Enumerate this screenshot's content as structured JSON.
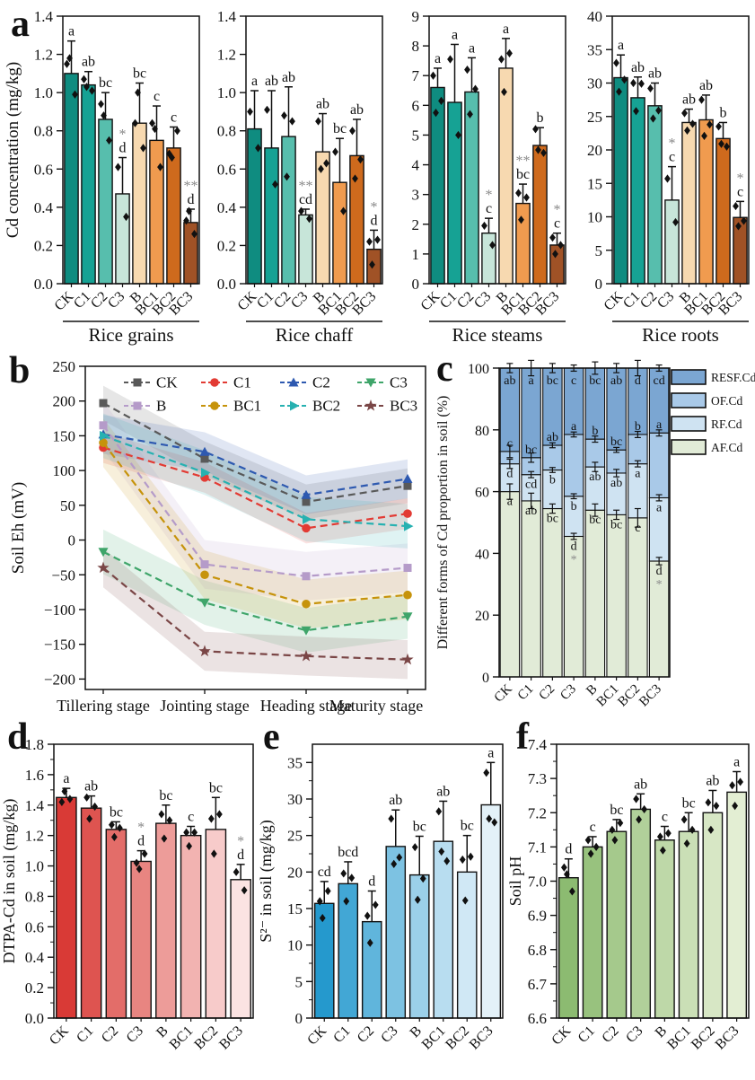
{
  "figure": {
    "panels": [
      {
        "id": "a",
        "letter": "a"
      },
      {
        "id": "b",
        "letter": "b"
      },
      {
        "id": "c",
        "letter": "c"
      },
      {
        "id": "d",
        "letter": "d"
      },
      {
        "id": "e",
        "letter": "e"
      },
      {
        "id": "f",
        "letter": "f"
      }
    ]
  },
  "chart_data": [
    {
      "id": "grains",
      "type": "bar",
      "group_label": "Rice grains",
      "ylabel": "Cd concentration (mg/kg)",
      "ylim": [
        0,
        1.4
      ],
      "ytick_step": 0.2,
      "ytick_decimals": 1,
      "categories": [
        "CK",
        "C1",
        "C2",
        "C3",
        "B",
        "BC1",
        "BC2",
        "BC3"
      ],
      "values": [
        1.1,
        1.04,
        0.86,
        0.47,
        0.84,
        0.75,
        0.71,
        0.32
      ],
      "errors": [
        0.17,
        0.07,
        0.14,
        0.19,
        0.21,
        0.18,
        0.11,
        0.07
      ],
      "sig": [
        "a",
        "ab",
        "bc",
        "d",
        "bc",
        "c",
        "c",
        "d"
      ],
      "stars": [
        "",
        "",
        "",
        "*",
        "",
        "",
        "",
        "**"
      ],
      "points": [
        [
          1.15,
          0.99,
          1.18
        ],
        [
          1.07,
          1.01,
          1.03
        ],
        [
          0.94,
          0.75,
          0.88
        ],
        [
          0.61,
          0.35
        ],
        [
          0.84,
          0.71,
          1.0
        ],
        [
          0.84,
          0.61,
          0.81
        ],
        [
          0.68,
          0.8,
          0.66
        ],
        [
          0.33,
          0.26,
          0.38
        ]
      ],
      "colors": [
        "#0f8c80",
        "#16a294",
        "#57bead",
        "#c7e5d9",
        "#f7d9b0",
        "#f09b4f",
        "#ce6a1d",
        "#a05226"
      ]
    },
    {
      "id": "chaff",
      "type": "bar",
      "group_label": "Rice chaff",
      "ylim": [
        0,
        1.4
      ],
      "ytick_step": 0.2,
      "ytick_decimals": 1,
      "categories": [
        "CK",
        "C1",
        "C2",
        "C3",
        "B",
        "BC1",
        "BC2",
        "BC3"
      ],
      "values": [
        0.81,
        0.71,
        0.77,
        0.36,
        0.69,
        0.53,
        0.67,
        0.18
      ],
      "errors": [
        0.2,
        0.3,
        0.26,
        0.03,
        0.2,
        0.23,
        0.19,
        0.1
      ],
      "sig": [
        "a",
        "ab",
        "ab",
        "cd",
        "ab",
        "bc",
        "ab",
        "d"
      ],
      "stars": [
        "",
        "",
        "",
        "**",
        "",
        "",
        "",
        "*"
      ],
      "points": [
        [
          0.9,
          0.71
        ],
        [
          0.91,
          0.52
        ],
        [
          0.88,
          0.85,
          0.56
        ],
        [
          0.38,
          0.34
        ],
        [
          0.85,
          0.63,
          0.6
        ],
        [
          0.69,
          0.38
        ],
        [
          0.8,
          0.65,
          0.55
        ],
        [
          0.22,
          0.23,
          0.1
        ]
      ],
      "colors": [
        "#0f8c80",
        "#16a294",
        "#57bead",
        "#c7e5d9",
        "#f7d9b0",
        "#f09b4f",
        "#ce6a1d",
        "#a05226"
      ]
    },
    {
      "id": "steams",
      "type": "bar",
      "group_label": "Rice steams",
      "ylim": [
        0,
        9
      ],
      "ytick_step": 1,
      "ytick_decimals": 0,
      "categories": [
        "CK",
        "C1",
        "C2",
        "C3",
        "B",
        "BC1",
        "BC2",
        "BC3"
      ],
      "values": [
        6.6,
        6.1,
        6.45,
        1.7,
        7.25,
        2.7,
        4.65,
        1.3
      ],
      "errors": [
        0.65,
        1.95,
        1.15,
        0.5,
        1.0,
        0.65,
        0.6,
        0.4
      ],
      "sig": [
        "a",
        "a",
        "a",
        "c",
        "a",
        "bc",
        "b",
        "c"
      ],
      "stars": [
        "",
        "",
        "",
        "*",
        "",
        "**",
        "",
        "*"
      ],
      "points": [
        [
          7.0,
          6.15,
          5.75
        ],
        [
          7.55,
          5.0
        ],
        [
          7.2,
          6.55,
          5.7
        ],
        [
          1.95,
          1.3
        ],
        [
          7.55,
          7.75,
          6.45
        ],
        [
          3.05,
          2.9,
          2.15
        ],
        [
          5.2,
          4.4,
          4.5
        ],
        [
          1.55,
          1.3,
          1.0
        ]
      ],
      "colors": [
        "#0f8c80",
        "#16a294",
        "#57bead",
        "#c7e5d9",
        "#f7d9b0",
        "#f09b4f",
        "#ce6a1d",
        "#a05226"
      ]
    },
    {
      "id": "roots",
      "type": "bar",
      "group_label": "Rice roots",
      "ylim": [
        0,
        40
      ],
      "ytick_step": 5,
      "ytick_decimals": 0,
      "categories": [
        "CK",
        "C1",
        "C2",
        "C3",
        "B",
        "BC1",
        "BC2",
        "BC3"
      ],
      "values": [
        30.8,
        27.8,
        26.6,
        12.5,
        24.1,
        24.5,
        21.7,
        9.9
      ],
      "errors": [
        3.4,
        3.1,
        3.4,
        5.0,
        2.0,
        3.7,
        2.4,
        2.4
      ],
      "sig": [
        "a",
        "ab",
        "ab",
        "c",
        "ab",
        "ab",
        "b",
        "c"
      ],
      "stars": [
        "",
        "",
        "",
        "*",
        "",
        "",
        "",
        "*"
      ],
      "points": [
        [
          33,
          30.5,
          28.7
        ],
        [
          30,
          29.9,
          25.8
        ],
        [
          29.2,
          25.9,
          24.7
        ],
        [
          15.7,
          9.2
        ],
        [
          25.5,
          23.9,
          22.9
        ],
        [
          27.5,
          23.8,
          22.1
        ],
        [
          23.5,
          20.5,
          20.9
        ],
        [
          11.6,
          9.4,
          8.6
        ]
      ],
      "colors": [
        "#0f8c80",
        "#16a294",
        "#57bead",
        "#c7e5d9",
        "#f7d9b0",
        "#f09b4f",
        "#ce6a1d",
        "#a05226"
      ]
    },
    {
      "id": "eh",
      "type": "line",
      "ylabel": "Soil Eh (mV)",
      "ylim": [
        -215,
        250
      ],
      "ytick_step": 50,
      "ytick_decimals": 0,
      "x_categories": [
        "Tillering stage",
        "Jointing stage",
        "Heading stage",
        "Maturity stage"
      ],
      "series": [
        {
          "name": "CK",
          "color": "#595959",
          "marker": "square",
          "values": [
            197,
            117,
            55,
            78
          ],
          "band": 25
        },
        {
          "name": "C1",
          "color": "#e23b34",
          "marker": "circle",
          "values": [
            133,
            90,
            17,
            38
          ],
          "band": 22
        },
        {
          "name": "C2",
          "color": "#2e59b0",
          "marker": "triangle-up",
          "values": [
            152,
            127,
            65,
            88
          ],
          "band": 28
        },
        {
          "name": "C3",
          "color": "#3fa56a",
          "marker": "triangle-down",
          "values": [
            -17,
            -90,
            -130,
            -110
          ],
          "band": 32
        },
        {
          "name": "B",
          "color": "#b59bc9",
          "marker": "square",
          "values": [
            165,
            -35,
            -52,
            -40
          ],
          "band": 35
        },
        {
          "name": "BC1",
          "color": "#c6930b",
          "marker": "circle",
          "values": [
            140,
            -50,
            -92,
            -79
          ],
          "band": 35
        },
        {
          "name": "BC2",
          "color": "#27b1b1",
          "marker": "triangle-right",
          "values": [
            150,
            97,
            30,
            20
          ],
          "band": 32
        },
        {
          "name": "BC3",
          "color": "#7a4646",
          "marker": "star",
          "values": [
            -40,
            -160,
            -167,
            -172
          ],
          "band": 28
        }
      ],
      "legend_rows": [
        [
          "CK",
          "C1",
          "C2",
          "C3"
        ],
        [
          "B",
          "BC1",
          "BC2",
          "BC3"
        ]
      ]
    },
    {
      "id": "forms",
      "type": "stacked_bar",
      "ylabel": "Different forms of Cd proportion in soil (%)",
      "ylim": [
        0,
        100
      ],
      "ytick_step": 20,
      "ytick_decimals": 0,
      "categories": [
        "CK",
        "C1",
        "C2",
        "C3",
        "B",
        "BC1",
        "BC2",
        "BC3"
      ],
      "segments_order": [
        "AF.Cd",
        "RF.Cd",
        "OF.Cd",
        "RESF.Cd"
      ],
      "segments": {
        "AF.Cd": [
          60,
          57,
          54.5,
          45.5,
          54,
          52.5,
          51.5,
          37.5
        ],
        "RF.Cd": [
          9,
          8.5,
          12.5,
          13,
          14,
          13.5,
          17.5,
          20.5
        ],
        "OF.Cd": [
          4,
          5.5,
          8,
          20,
          9,
          7.5,
          9.5,
          21
        ],
        "RESF.Cd": [
          27,
          29,
          25,
          21.5,
          23,
          26.5,
          21.5,
          21
        ]
      },
      "segment_colors": {
        "AF.Cd": "#e1ebd7",
        "RF.Cd": "#cfe3f2",
        "OF.Cd": "#a9c9e8",
        "RESF.Cd": "#7ba6d2"
      },
      "boundary_errors": {
        "AF": [
          2.5,
          2.5,
          1.5,
          1,
          2,
          1.5,
          3,
          1.2
        ],
        "RF": [
          1.5,
          1,
          0.8,
          0.8,
          1.5,
          1.2,
          1,
          1
        ],
        "OF": [
          2,
          1.5,
          0.8,
          0.8,
          1,
          0.8,
          1,
          1
        ],
        "top": [
          1.5,
          2.5,
          1.5,
          1,
          2,
          1.5,
          2.5,
          1
        ]
      },
      "sig": {
        "RESF": [
          "ab",
          "a",
          "bc",
          "c",
          "bc",
          "ab",
          "d",
          "cd"
        ],
        "OF": [
          "c",
          "bc",
          "ab",
          "a",
          "b",
          "bc",
          "b",
          "a"
        ],
        "RF": [
          "d",
          "cd",
          "b",
          "b",
          "ab",
          "ab",
          "a",
          "a"
        ],
        "AF": [
          "a",
          "ab",
          "bc",
          "d",
          "bc",
          "bc",
          "c",
          "d"
        ]
      },
      "af_stars": [
        "",
        "",
        "",
        "*",
        "",
        "",
        "",
        "*"
      ],
      "legend": [
        "RESF.Cd",
        "OF.Cd",
        "RF.Cd",
        "AF.Cd"
      ]
    },
    {
      "id": "dtpa",
      "type": "bar",
      "ylabel": "DTPA-Cd in soil (mg/kg)",
      "ylim": [
        0,
        1.8
      ],
      "ytick_step": 0.2,
      "ytick_minor": 0.1,
      "ytick_decimals": 1,
      "categories": [
        "CK",
        "C1",
        "C2",
        "C3",
        "B",
        "BC1",
        "BC2",
        "BC3"
      ],
      "values": [
        1.45,
        1.38,
        1.24,
        1.03,
        1.28,
        1.2,
        1.24,
        0.91
      ],
      "errors": [
        0.06,
        0.08,
        0.05,
        0.07,
        0.12,
        0.06,
        0.21,
        0.1
      ],
      "sig": [
        "a",
        "ab",
        "bc",
        "d",
        "bc",
        "c",
        "bc",
        "d"
      ],
      "stars": [
        "",
        "",
        "",
        "*",
        "",
        "",
        "",
        "*"
      ],
      "points": [
        [
          1.42,
          1.44,
          1.49
        ],
        [
          1.45,
          1.39,
          1.31
        ],
        [
          1.27,
          1.25,
          1.19
        ],
        [
          1.02,
          1.08,
          0.98
        ],
        [
          1.34,
          1.3,
          1.18
        ],
        [
          1.22,
          1.22,
          1.13
        ],
        [
          1.31,
          1.34,
          1.08
        ],
        [
          0.96,
          0.84
        ]
      ],
      "colors": [
        "#d93a36",
        "#de5450",
        "#e36d69",
        "#e88581",
        "#ed9c99",
        "#f2b3b1",
        "#f7cbca",
        "#fbe3e2"
      ]
    },
    {
      "id": "sulfide",
      "type": "bar",
      "ylabel": "S²⁻ in soil (mg/kg)",
      "ylim": [
        0,
        37.5
      ],
      "ytick_step": 5,
      "ytick_minor": 2.5,
      "ytick_max": 35,
      "ytick_decimals": 0,
      "categories": [
        "CK",
        "C1",
        "C2",
        "C3",
        "B",
        "BC1",
        "BC2",
        "BC3"
      ],
      "values": [
        15.7,
        18.4,
        13.2,
        23.5,
        19.6,
        24.2,
        20.0,
        29.2
      ],
      "errors": [
        3.0,
        3.0,
        4.2,
        5.0,
        5.3,
        5.5,
        5.0,
        5.8
      ],
      "sig": [
        "cd",
        "bcd",
        "d",
        "ab",
        "bc",
        "ab",
        "bc",
        "a"
      ],
      "stars": [
        "",
        "",
        "",
        "",
        "",
        "",
        "",
        ""
      ],
      "points": [
        [
          16.0,
          17.4,
          13.7
        ],
        [
          19.8,
          19.2,
          16.0
        ],
        [
          14.0,
          15.5,
          10.3
        ],
        [
          27.3,
          22.0,
          21.1
        ],
        [
          23.4,
          19.1,
          16.2
        ],
        [
          28.3,
          21.5,
          22.8
        ],
        [
          21.7,
          22.1,
          16.1
        ],
        [
          33.6,
          26.8,
          27.3
        ]
      ],
      "colors": [
        "#2599cd",
        "#42a7d5",
        "#60b5dc",
        "#7dc2e2",
        "#9bd0e9",
        "#b8ddf0",
        "#d0e8f5",
        "#e3f1f8"
      ]
    },
    {
      "id": "ph",
      "type": "bar",
      "ylabel": "Soil pH",
      "ylim": [
        6.6,
        7.4
      ],
      "ytick_step": 0.1,
      "ytick_minor": 0.05,
      "ytick_decimals": 1,
      "categories": [
        "CK",
        "C1",
        "C2",
        "C3",
        "B",
        "BC1",
        "BC2",
        "BC3"
      ],
      "values": [
        7.01,
        7.1,
        7.145,
        7.21,
        7.12,
        7.145,
        7.2,
        7.26
      ],
      "errors": [
        0.055,
        0.03,
        0.035,
        0.045,
        0.04,
        0.055,
        0.065,
        0.06
      ],
      "sig": [
        "d",
        "c",
        "bc",
        "ab",
        "c",
        "bc",
        "ab",
        "a"
      ],
      "stars": [
        "",
        "",
        "",
        "",
        "",
        "",
        "",
        ""
      ],
      "points": [
        [
          7.04,
          6.97,
          7.02
        ],
        [
          7.12,
          7.1,
          7.08
        ],
        [
          7.15,
          7.17,
          7.12
        ],
        [
          7.24,
          7.21,
          7.18
        ],
        [
          7.13,
          7.14,
          7.09
        ],
        [
          7.18,
          7.15,
          7.11
        ],
        [
          7.23,
          7.22,
          7.15
        ],
        [
          7.28,
          7.29,
          7.22
        ]
      ],
      "colors": [
        "#8cbb71",
        "#98c27e",
        "#a5c98c",
        "#b1d09a",
        "#bed8a8",
        "#cadfb6",
        "#d7e7c5",
        "#e3eed3"
      ]
    }
  ]
}
